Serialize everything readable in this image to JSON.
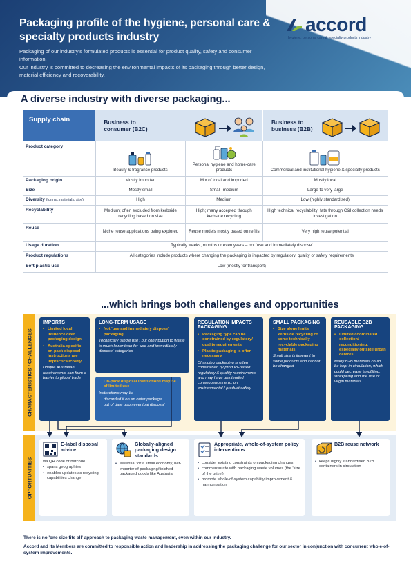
{
  "header": {
    "title": "Packaging profile of the hygiene, personal care & specialty products industry",
    "intro_1": "Packaging of our industry's formulated products is essential for product quality, safety and consumer information.",
    "intro_2": "Our industry is committed to decreasing the environmental impacts of its packaging through better design, material efficiency and recoverability.",
    "logo_word": "accord",
    "logo_tagline": "hygiene, personal care & specialty products industry",
    "brand_colors": {
      "navy": "#1b3f74",
      "blue": "#3a6fb4",
      "yellow": "#f5b21b",
      "green": "#8fbe3c"
    }
  },
  "section1_title": "A diverse industry with diverse packaging...",
  "table": {
    "supply_chain_label": "Supply chain",
    "b2c_title": "Business to consumer (B2C)",
    "b2b_title": "Business to business (B2B)",
    "b2c_icon": "box-to-consumers-icon",
    "b2b_icon": "box-to-box-icon",
    "rows": {
      "category": {
        "label": "Product category",
        "c1": "Beauty & fragrance products",
        "c2": "Personal hygiene and home-care products",
        "c3": "Commercial and institutional hygiene & specialty products"
      },
      "origin": {
        "label": "Packaging origin",
        "c1": "Mostly imported",
        "c2": "Mix of local and imported",
        "c3": "Mostly local"
      },
      "size": {
        "label": "Size",
        "c1": "Mostly small",
        "c2": "Small–medium",
        "c3": "Large to very large"
      },
      "diversity": {
        "label": "Diversity",
        "label_sub": "(format, materials, size)",
        "c1": "High",
        "c2": "Medium",
        "c3": "Low (highly standardised)"
      },
      "recyclability": {
        "label": "Recyclability",
        "c1": "Medium; often excluded from kerbside recycling based on size",
        "c2": "High; many accepted through kerbside recycling",
        "c3": "High technical recyclability; fate through C&I collection needs investigation"
      },
      "reuse": {
        "label": "Reuse",
        "c1": "Niche reuse applications being explored",
        "c2": "Reuse models mostly based on refills",
        "c3": "Very high reuse potential"
      },
      "usage": {
        "label": "Usage duration",
        "all": "Typically weeks, months or even years – not 'use and immediately dispose'"
      },
      "regulations": {
        "label": "Product regulations",
        "all": "All categories include products where changing the packaging is impacted by regulatory, quality or safety requirements"
      },
      "soft_plastic": {
        "label": "Soft plastic use",
        "all": "Low (mostly for transport)"
      }
    }
  },
  "section2_title": "...which brings both challenges and opportunities",
  "challenges": {
    "band_label": "CHARACTERISTICS / CHALLENGES",
    "imports": {
      "title": "IMPORTS",
      "b1": "Limited local influence over packaging design",
      "b2": "Australia-specific on-pack disposal instructions are impractical/costly",
      "note": "Unique Australian requirements can form a barrier to global trade"
    },
    "longterm": {
      "title": "LONG-TERM USAGE",
      "b1": "Not 'use and immediately dispose' packaging",
      "note": "Technically 'single use', but contribution to waste is much lower than for 'use and immediately dispose' categories",
      "sub_b1": "On-pack disposal instructions may be of limited use",
      "sub_note": "Instructions may be",
      "sub_b2": "discarded if on an outer package",
      "sub_b3": "out of date upon eventual disposal"
    },
    "regulation": {
      "title": "REGULATION IMPACTS PACKAGING",
      "b1": "Packaging type can be constrained by regulatory/ quality requirements",
      "b2": "Plastic packaging is often necessary",
      "note": "Changing packaging is often constrained by product-based regulatory & quality requirements and may have unintended consequences e.g., on environmental / product safety"
    },
    "small": {
      "title": "SMALL PACKAGING",
      "b1": "Size alone limits kerbside recycling of some technically recyclable packaging materials",
      "note": "Small size is inherent to some products and cannot be changed"
    },
    "reusable": {
      "title": "REUSABLE B2B PACKAGING",
      "b1": "Limited coordinated collection/ reconditioning, especially outside urban centres",
      "note": "Many B2B materials could be kept in circulation, which could decrease landfilling, stockpiling and the use of virgin materials"
    }
  },
  "opportunities": {
    "band_label": "OPPORTUNITIES",
    "elabel": {
      "title": "E-label disposal advice",
      "intro": "via QR code or barcode",
      "b1": "spans geographies",
      "b2": "enables updates as recycling capabilities change"
    },
    "global": {
      "title": "Globally-aligned packaging design standards",
      "b1": "essential for a small economy, net-importer of packaging/finished packaged goods like Australia"
    },
    "policy": {
      "title": "Appropriate, whole-of-system policy interventions",
      "b1": "consider existing constraints on packaging changes",
      "b2": "commensurate with packaging waste volumes (the 'size of the prize')",
      "b3": "promote whole-of-system capability improvement & harmonisation"
    },
    "reuse": {
      "title": "B2B reuse network",
      "b1": "keeps highly standardised B2B containers in circulation"
    }
  },
  "footer": {
    "line1": "There is no 'one size fits all' approach to packaging waste management, even within our industry.",
    "line2": "Accord and its Members are committed to responsible action and leadership in addressing the packaging challenge for our sector in conjunction with concurrent whole-of-system improvements."
  }
}
